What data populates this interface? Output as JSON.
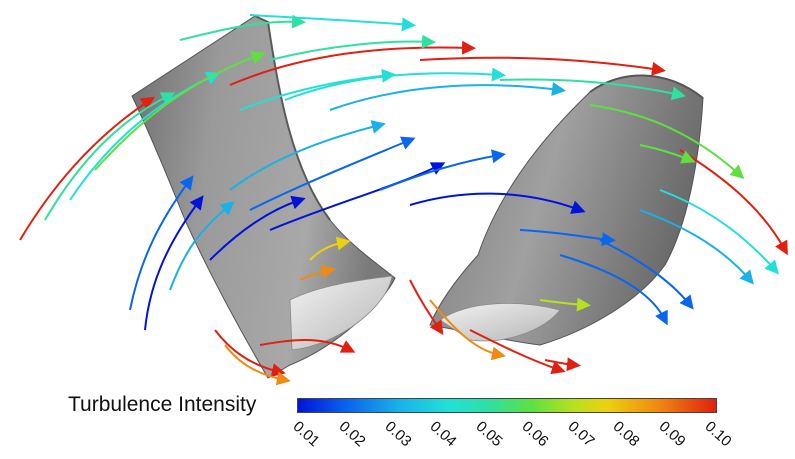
{
  "colorbar": {
    "title": "Turbulence Intensity",
    "ticks": [
      "0.01",
      "0.02",
      "0.03",
      "0.04",
      "0.05",
      "0.06",
      "0.07",
      "0.08",
      "0.09",
      "0.10"
    ],
    "colors": [
      "#0014d8",
      "#0a66ee",
      "#1ab0e8",
      "#22e0d8",
      "#2fe0a0",
      "#5ee040",
      "#b8e020",
      "#ecd010",
      "#f08a10",
      "#e02010"
    ]
  },
  "scene": {
    "blade_color": "#8c8c8c",
    "background": "#ffffff"
  }
}
